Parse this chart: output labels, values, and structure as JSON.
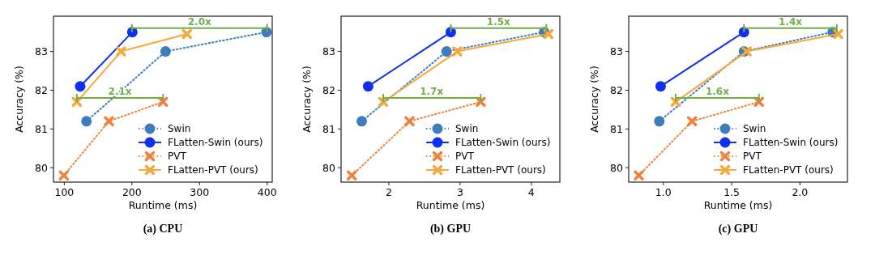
{
  "chart_data": [
    {
      "type": "line",
      "title": "(a) CPU",
      "xlabel": "Runtime (ms)",
      "ylabel": "Accuracy (%)",
      "xlim": [
        84,
        407.5
      ],
      "ylim": [
        79.63,
        83.91
      ],
      "xticks": [
        100,
        200,
        300,
        400
      ],
      "yticks": [
        80,
        81,
        82,
        83
      ],
      "grid": false,
      "legend": "bottom right",
      "series": [
        {
          "name": "Swin",
          "color": "#3b7dbd",
          "x": [
            132.8,
            249.8,
            399
          ],
          "values": [
            81.2,
            83.0,
            83.5
          ],
          "marker": "circle",
          "line_style": "dotted"
        },
        {
          "name": "FLatten-Swin (ours)",
          "color": "#1030f0",
          "x": [
            123.5,
            200.6
          ],
          "values": [
            82.1,
            83.5
          ],
          "marker": "circle",
          "line_style": "solid"
        },
        {
          "name": "PVT",
          "color": "#f0803a",
          "x": [
            99.3,
            166,
            246
          ],
          "values": [
            79.8,
            81.2,
            81.7
          ],
          "marker": "cross",
          "line_style": "dotted"
        },
        {
          "name": "FLatten-PVT (ours)",
          "color": "#f7a83a",
          "x": [
            118.6,
            183.9,
            281.5
          ],
          "values": [
            81.7,
            83.0,
            83.45
          ],
          "marker": "cross",
          "line_style": "solid"
        },
        {
          "color": "#72ae48",
          "x": [
            200,
            400
          ],
          "values": [
            83.6,
            83.6
          ],
          "marker": "none",
          "line_style": "solid"
        },
        {
          "color": "#72ae48",
          "x": [
            118.6,
            246
          ],
          "values": [
            81.8,
            81.8
          ],
          "marker": "none",
          "line_style": "solid"
        }
      ],
      "annotations": [
        {
          "text": "2.0x",
          "x": 300,
          "y": 83.6
        },
        {
          "text": "2.1x",
          "x": 182.3,
          "y": 81.8
        }
      ]
    },
    {
      "type": "line",
      "title": "(b) GPU",
      "xlabel": "Runtime (ms)",
      "ylabel": "Accuracy (%)",
      "xlim": [
        1.33,
        4.4
      ],
      "ylim": [
        79.63,
        83.91
      ],
      "xticks": [
        2,
        3,
        4
      ],
      "yticks": [
        80,
        81,
        82,
        83
      ],
      "grid": false,
      "legend": "bottom right",
      "series": [
        {
          "name": "Swin",
          "color": "#3b7dbd",
          "x": [
            1.62,
            2.81,
            4.18
          ],
          "values": [
            81.2,
            83.0,
            83.5
          ],
          "marker": "circle",
          "line_style": "dotted"
        },
        {
          "name": "FLatten-Swin (ours)",
          "color": "#1030f0",
          "x": [
            1.71,
            2.87
          ],
          "values": [
            82.1,
            83.5
          ],
          "marker": "circle",
          "line_style": "solid"
        },
        {
          "name": "PVT",
          "color": "#f0803a",
          "x": [
            1.48,
            2.29,
            3.29
          ],
          "values": [
            79.8,
            81.2,
            81.7
          ],
          "marker": "cross",
          "line_style": "dotted"
        },
        {
          "name": "FLatten-PVT (ours)",
          "color": "#f7a83a",
          "x": [
            1.92,
            2.96,
            4.24
          ],
          "values": [
            81.7,
            83.0,
            83.45
          ],
          "marker": "cross",
          "line_style": "solid"
        },
        {
          "color": "#72ae48",
          "x": [
            2.87,
            4.21
          ],
          "values": [
            83.6,
            83.6
          ],
          "marker": "none",
          "line_style": "solid"
        },
        {
          "color": "#72ae48",
          "x": [
            1.92,
            3.29
          ],
          "values": [
            81.8,
            81.8
          ],
          "marker": "none",
          "line_style": "solid"
        }
      ],
      "annotations": [
        {
          "text": "1.5x",
          "x": 3.54,
          "y": 83.6
        },
        {
          "text": "1.7x",
          "x": 2.6,
          "y": 81.8
        }
      ]
    },
    {
      "type": "line",
      "title": "(c) GPU",
      "xlabel": "Runtime (ms)",
      "ylabel": "Accuracy (%)",
      "xlim": [
        0.746,
        2.348
      ],
      "ylim": [
        79.63,
        83.91
      ],
      "xticks": [
        {
          "value": 1,
          "label": "1.0"
        },
        {
          "value": 1.5,
          "label": "1.5"
        },
        {
          "value": 2,
          "label": "2.0"
        }
      ],
      "yticks": [
        80,
        81,
        82,
        83
      ],
      "grid": false,
      "legend": "bottom right",
      "series": [
        {
          "name": "Swin",
          "color": "#3b7dbd",
          "x": [
            0.97,
            1.59,
            2.24
          ],
          "values": [
            81.2,
            83.0,
            83.5
          ],
          "marker": "circle",
          "line_style": "dotted"
        },
        {
          "name": "FLatten-Swin (ours)",
          "color": "#1030f0",
          "x": [
            0.98,
            1.59
          ],
          "values": [
            82.1,
            83.5
          ],
          "marker": "circle",
          "line_style": "solid"
        },
        {
          "name": "PVT",
          "color": "#f0803a",
          "x": [
            0.82,
            1.21,
            1.7
          ],
          "values": [
            79.8,
            81.2,
            81.7
          ],
          "marker": "cross",
          "line_style": "dotted"
        },
        {
          "name": "FLatten-PVT (ours)",
          "color": "#f7a83a",
          "x": [
            1.09,
            1.61,
            2.28
          ],
          "values": [
            81.7,
            83.0,
            83.45
          ],
          "marker": "cross",
          "line_style": "solid"
        },
        {
          "color": "#72ae48",
          "x": [
            1.59,
            2.27
          ],
          "values": [
            83.6,
            83.6
          ],
          "marker": "none",
          "line_style": "solid"
        },
        {
          "color": "#72ae48",
          "x": [
            1.09,
            1.7
          ],
          "values": [
            81.8,
            81.8
          ],
          "marker": "none",
          "line_style": "solid"
        }
      ],
      "annotations": [
        {
          "text": "1.4x",
          "x": 1.93,
          "y": 83.6
        },
        {
          "text": "1.6x",
          "x": 1.395,
          "y": 81.8
        }
      ]
    }
  ]
}
